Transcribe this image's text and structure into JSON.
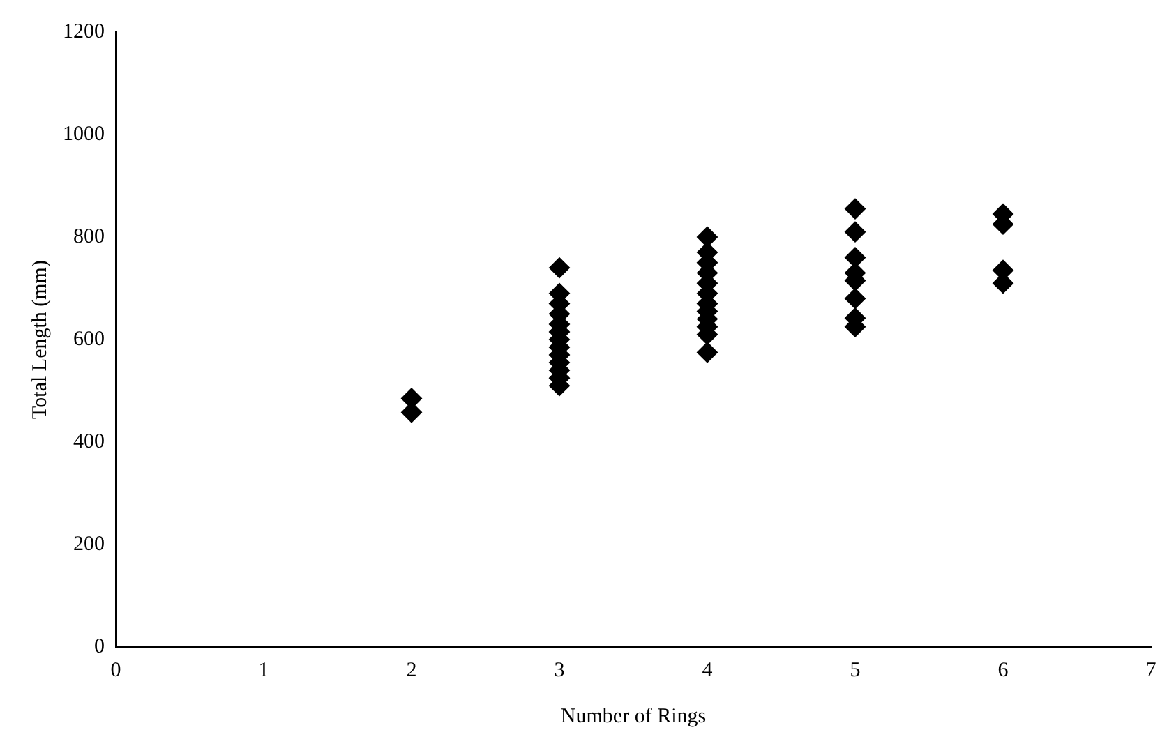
{
  "chart_data": {
    "type": "scatter",
    "xlabel": "Number of Rings",
    "ylabel": "Total Length (mm)",
    "x": [
      2,
      2,
      3,
      3,
      3,
      3,
      3,
      3,
      3,
      3,
      3,
      3,
      3,
      3,
      3,
      4,
      4,
      4,
      4,
      4,
      4,
      4,
      4,
      4,
      4,
      4,
      4,
      5,
      5,
      5,
      5,
      5,
      5,
      5,
      5,
      6,
      6,
      6,
      6
    ],
    "values": [
      485,
      458,
      740,
      690,
      670,
      650,
      630,
      615,
      600,
      585,
      570,
      555,
      540,
      525,
      510,
      800,
      770,
      750,
      730,
      710,
      690,
      670,
      655,
      640,
      625,
      610,
      575,
      855,
      810,
      760,
      730,
      715,
      680,
      642,
      625,
      845,
      825,
      735,
      710
    ],
    "color": "#000000",
    "marker": "diamond",
    "xlim": [
      0,
      7
    ],
    "xticks": [
      0,
      1,
      2,
      3,
      4,
      5,
      6,
      7
    ],
    "ylim": [
      0,
      1200
    ],
    "yticks": [
      0,
      200,
      400,
      600,
      800,
      1000,
      1200
    ],
    "grid": false,
    "legend": false
  }
}
